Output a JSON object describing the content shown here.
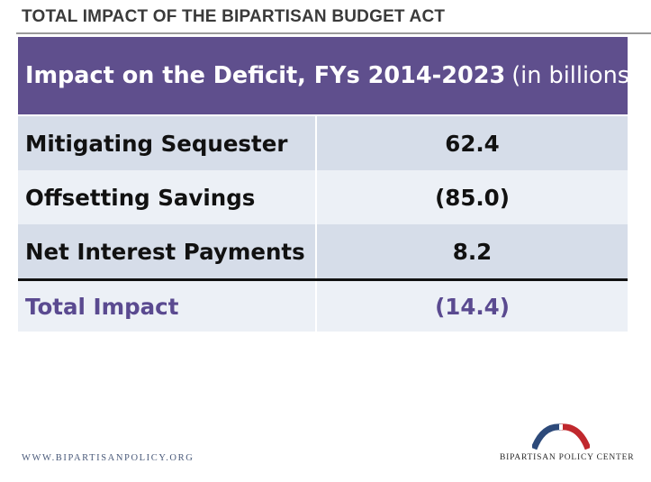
{
  "slide": {
    "title": "TOTAL IMPACT OF THE BIPARTISAN BUDGET ACT"
  },
  "table": {
    "header_bold": "Impact on the Deficit, FYs 2014-2023",
    "header_light": "(in billions)",
    "rows": [
      {
        "label": "Mitigating Sequester",
        "value": "62.4"
      },
      {
        "label": "Offsetting Savings",
        "value": "(85.0)"
      },
      {
        "label": "Net Interest Payments",
        "value": "8.2"
      }
    ],
    "total": {
      "label": "Total Impact",
      "value": "(14.4)"
    }
  },
  "footer": {
    "url": "WWW.BIPARTISANPOLICY.ORG",
    "logo_text": "BIPARTISAN POLICY CENTER"
  },
  "colors": {
    "header_bg": "#5f4f8d",
    "row_dark": "#d6dde9",
    "row_light": "#ecf0f6",
    "total_text": "#5a4a90",
    "logo_blue": "#2d4a7a",
    "logo_red": "#c0282d"
  }
}
